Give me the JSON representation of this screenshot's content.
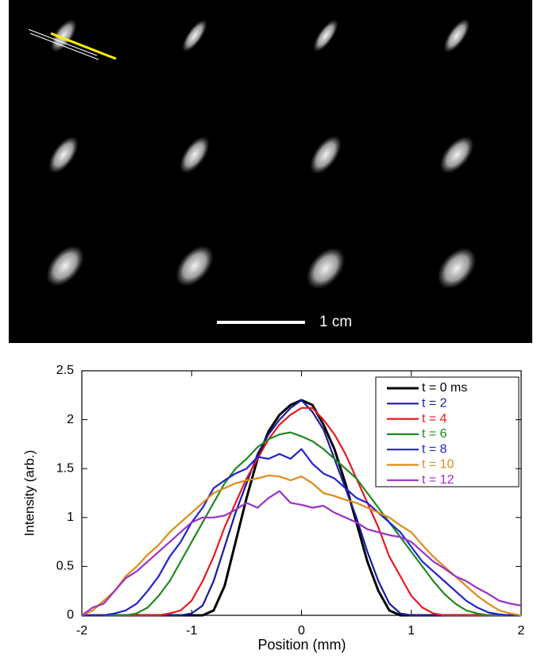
{
  "image_panel": {
    "scale_bar_label": "1 cm"
  },
  "chart_data": {
    "type": "line",
    "xlabel": "Position (mm)",
    "ylabel": "Intensity (arb.)",
    "xlim": [
      -2,
      2
    ],
    "ylim": [
      0,
      2.5
    ],
    "xticks": [
      -2,
      -1,
      0,
      1,
      2
    ],
    "yticks": [
      0,
      0.5,
      1,
      1.5,
      2,
      2.5
    ],
    "legend": "upper right",
    "x": [
      -2,
      -1.9,
      -1.8,
      -1.7,
      -1.6,
      -1.5,
      -1.4,
      -1.3,
      -1.2,
      -1.1,
      -1,
      -0.9,
      -0.8,
      -0.7,
      -0.6,
      -0.5,
      -0.4,
      -0.3,
      -0.2,
      -0.1,
      0,
      0.1,
      0.2,
      0.3,
      0.4,
      0.5,
      0.6,
      0.7,
      0.8,
      0.9,
      1,
      1.1,
      1.2,
      1.3,
      1.4,
      1.5,
      1.6,
      1.7,
      1.8,
      1.9,
      2
    ],
    "series": [
      {
        "name": "t = 0 ms",
        "color": "#000000",
        "values": [
          0,
          0,
          0,
          0,
          0,
          0,
          0,
          0,
          0,
          0,
          0,
          0,
          0.05,
          0.3,
          0.75,
          1.2,
          1.6,
          1.88,
          2.05,
          2.15,
          2.2,
          2.15,
          1.95,
          1.7,
          1.35,
          0.95,
          0.55,
          0.25,
          0.05,
          0,
          0,
          0,
          0,
          0,
          0,
          0,
          0,
          0,
          0,
          0,
          0
        ]
      },
      {
        "name": "t = 2",
        "color": "#1a1aa0",
        "values": [
          0,
          0,
          0,
          0,
          0,
          0,
          0,
          0,
          0,
          0,
          0.02,
          0.1,
          0.35,
          0.7,
          1.05,
          1.35,
          1.65,
          1.85,
          2.0,
          2.12,
          2.2,
          2.08,
          1.9,
          1.6,
          1.3,
          1.0,
          0.65,
          0.35,
          0.12,
          0.02,
          0,
          0,
          0,
          0,
          0,
          0,
          0,
          0,
          0,
          0,
          0
        ]
      },
      {
        "name": "t = 4",
        "color": "#e8191e",
        "values": [
          0,
          0,
          0,
          0,
          0,
          0,
          0,
          0,
          0.02,
          0.05,
          0.15,
          0.35,
          0.6,
          0.9,
          1.15,
          1.4,
          1.6,
          1.8,
          1.95,
          2.05,
          2.12,
          2.12,
          2.0,
          1.85,
          1.65,
          1.4,
          1.15,
          0.9,
          0.6,
          0.4,
          0.2,
          0.08,
          0.02,
          0,
          0,
          0,
          0,
          0,
          0,
          0,
          0
        ]
      },
      {
        "name": "t = 6",
        "color": "#1e8a1e",
        "values": [
          0,
          0,
          0,
          0,
          0,
          0.02,
          0.08,
          0.2,
          0.35,
          0.55,
          0.75,
          0.95,
          1.15,
          1.35,
          1.5,
          1.6,
          1.72,
          1.8,
          1.85,
          1.87,
          1.83,
          1.78,
          1.7,
          1.6,
          1.5,
          1.4,
          1.25,
          1.1,
          0.95,
          0.8,
          0.65,
          0.5,
          0.35,
          0.22,
          0.12,
          0.05,
          0.02,
          0,
          0,
          0,
          0
        ]
      },
      {
        "name": "t = 8",
        "color": "#2323d2",
        "values": [
          0,
          0,
          0,
          0.02,
          0.05,
          0.12,
          0.25,
          0.4,
          0.6,
          0.75,
          0.95,
          1.1,
          1.3,
          1.38,
          1.45,
          1.5,
          1.62,
          1.6,
          1.65,
          1.6,
          1.7,
          1.55,
          1.45,
          1.4,
          1.3,
          1.2,
          1.15,
          1.05,
          0.95,
          0.85,
          0.7,
          0.55,
          0.45,
          0.35,
          0.25,
          0.15,
          0.08,
          0.03,
          0.01,
          0,
          0
        ]
      },
      {
        "name": "t = 10",
        "color": "#e08a1a",
        "values": [
          0,
          0.05,
          0.15,
          0.25,
          0.4,
          0.5,
          0.62,
          0.72,
          0.85,
          0.95,
          1.05,
          1.15,
          1.25,
          1.3,
          1.35,
          1.38,
          1.4,
          1.43,
          1.42,
          1.38,
          1.42,
          1.35,
          1.25,
          1.22,
          1.18,
          1.15,
          1.1,
          1.05,
          1.0,
          0.92,
          0.85,
          0.72,
          0.6,
          0.5,
          0.4,
          0.3,
          0.2,
          0.12,
          0.05,
          0.02,
          0
        ]
      },
      {
        "name": "t = 12",
        "color": "#9b30c8",
        "values": [
          0,
          0.08,
          0.12,
          0.25,
          0.38,
          0.45,
          0.55,
          0.65,
          0.75,
          0.85,
          0.95,
          1.0,
          1.0,
          1.02,
          1.08,
          1.15,
          1.1,
          1.2,
          1.27,
          1.15,
          1.13,
          1.1,
          1.12,
          1.05,
          1.0,
          0.95,
          0.88,
          0.85,
          0.82,
          0.8,
          0.75,
          0.65,
          0.55,
          0.48,
          0.4,
          0.35,
          0.28,
          0.22,
          0.15,
          0.12,
          0.1
        ]
      }
    ]
  }
}
